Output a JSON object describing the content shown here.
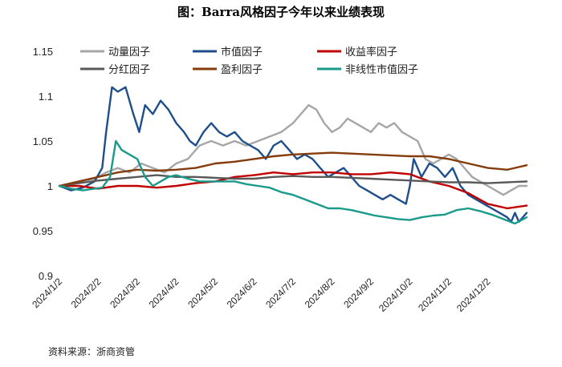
{
  "figure": {
    "title": "图：Barra风格因子今年以来业绩表现",
    "source": "资料来源：浙商资管"
  },
  "chart_data": {
    "type": "line",
    "title": "图：Barra风格因子今年以来业绩表现",
    "xlabel": "",
    "ylabel": "",
    "ylim": [
      0.9,
      1.15
    ],
    "yticks": [
      0.9,
      0.95,
      1.0,
      1.05,
      1.1,
      1.15
    ],
    "ytick_labels": [
      "0.9",
      "0.95",
      "1",
      "1.05",
      "1.1",
      "1.15"
    ],
    "xrange": [
      0,
      12
    ],
    "xticks": [
      0,
      1,
      2,
      3,
      4,
      5,
      6,
      7,
      8,
      9,
      10,
      11
    ],
    "xtick_labels": [
      "2024/1/2",
      "2024/2/2",
      "2024/3/2",
      "2024/4/2",
      "2024/5/2",
      "2024/6/2",
      "2024/7/2",
      "2024/8/2",
      "2024/9/2",
      "2024/10/2",
      "2024/11/2",
      "2024/12/2"
    ],
    "legend_position": "top",
    "grid": false,
    "series": [
      {
        "name": "动量因子",
        "color": "#a6a6a6",
        "x": [
          0,
          0.3,
          0.6,
          0.9,
          1.2,
          1.5,
          1.8,
          2.1,
          2.4,
          2.7,
          3.0,
          3.3,
          3.6,
          3.9,
          4.2,
          4.5,
          4.8,
          5.1,
          5.4,
          5.7,
          6.0,
          6.2,
          6.4,
          6.6,
          6.8,
          7.0,
          7.2,
          7.4,
          7.6,
          7.8,
          8.0,
          8.2,
          8.4,
          8.6,
          8.8,
          9.0,
          9.2,
          9.4,
          9.6,
          9.8,
          10.0,
          10.2,
          10.4,
          10.6,
          10.8,
          11.0,
          11.2,
          11.4,
          11.6,
          11.8,
          12.0
        ],
        "values": [
          1.0,
          1.003,
          1.006,
          1.008,
          1.015,
          1.02,
          1.015,
          1.025,
          1.02,
          1.015,
          1.025,
          1.03,
          1.045,
          1.05,
          1.045,
          1.05,
          1.045,
          1.05,
          1.055,
          1.06,
          1.07,
          1.08,
          1.09,
          1.085,
          1.07,
          1.06,
          1.065,
          1.075,
          1.07,
          1.065,
          1.06,
          1.07,
          1.065,
          1.07,
          1.06,
          1.055,
          1.05,
          1.03,
          1.025,
          1.03,
          1.035,
          1.03,
          1.02,
          1.01,
          1.005,
          1.0,
          0.995,
          0.99,
          0.995,
          1.0,
          1.0
        ]
      },
      {
        "name": "市值因子",
        "color": "#1f4e8c",
        "x": [
          0,
          0.3,
          0.6,
          0.9,
          1.1,
          1.2,
          1.35,
          1.5,
          1.7,
          1.9,
          2.05,
          2.2,
          2.4,
          2.6,
          2.8,
          3.0,
          3.2,
          3.35,
          3.5,
          3.7,
          3.9,
          4.1,
          4.3,
          4.5,
          4.7,
          4.9,
          5.1,
          5.3,
          5.5,
          5.7,
          5.9,
          6.1,
          6.3,
          6.5,
          6.7,
          6.9,
          7.1,
          7.3,
          7.5,
          7.7,
          7.9,
          8.1,
          8.3,
          8.5,
          8.7,
          8.9,
          9.0,
          9.1,
          9.2,
          9.3,
          9.5,
          9.7,
          9.9,
          10.1,
          10.3,
          10.5,
          10.7,
          10.9,
          11.1,
          11.3,
          11.5,
          11.6,
          11.7,
          11.8,
          12.0
        ],
        "values": [
          1.0,
          0.995,
          0.998,
          1.005,
          1.02,
          1.06,
          1.11,
          1.105,
          1.11,
          1.08,
          1.06,
          1.09,
          1.08,
          1.095,
          1.085,
          1.07,
          1.06,
          1.05,
          1.045,
          1.06,
          1.07,
          1.06,
          1.055,
          1.06,
          1.05,
          1.045,
          1.04,
          1.03,
          1.045,
          1.05,
          1.04,
          1.03,
          1.035,
          1.03,
          1.02,
          1.01,
          1.015,
          1.02,
          1.01,
          1.0,
          0.995,
          0.99,
          0.985,
          0.99,
          0.985,
          0.98,
          1.0,
          1.03,
          1.02,
          1.01,
          1.025,
          1.02,
          1.01,
          1.02,
          1.0,
          0.99,
          0.985,
          0.98,
          0.975,
          0.97,
          0.965,
          0.96,
          0.97,
          0.96,
          0.97
        ]
      },
      {
        "name": "收益率因子",
        "color": "#c00000",
        "x": [
          0,
          0.5,
          1.0,
          1.5,
          2.0,
          2.5,
          3.0,
          3.5,
          4.0,
          4.5,
          5.0,
          5.5,
          6.0,
          6.5,
          7.0,
          7.5,
          8.0,
          8.5,
          9.0,
          9.5,
          10.0,
          10.5,
          11.0,
          11.5,
          12.0
        ],
        "values": [
          1.0,
          1.0,
          0.997,
          1.0,
          1.0,
          0.998,
          1.0,
          1.003,
          1.005,
          1.01,
          1.012,
          1.015,
          1.013,
          1.015,
          1.015,
          1.013,
          1.013,
          1.015,
          1.013,
          1.005,
          1.0,
          0.992,
          0.98,
          0.975,
          0.978
        ]
      },
      {
        "name": "分红因子",
        "color": "#595959",
        "x": [
          0,
          0.5,
          1.0,
          1.5,
          2.0,
          2.5,
          3.0,
          3.5,
          4.0,
          4.5,
          5.0,
          5.5,
          6.0,
          6.5,
          7.0,
          7.5,
          8.0,
          8.5,
          9.0,
          9.5,
          10.0,
          10.5,
          11.0,
          11.5,
          12.0
        ],
        "values": [
          1.0,
          1.003,
          1.006,
          1.008,
          1.01,
          1.012,
          1.01,
          1.01,
          1.009,
          1.008,
          1.008,
          1.01,
          1.011,
          1.01,
          1.01,
          1.009,
          1.008,
          1.007,
          1.006,
          1.005,
          1.004,
          1.004,
          1.003,
          1.004,
          1.005
        ]
      },
      {
        "name": "盈利因子",
        "color": "#843c0c",
        "x": [
          0,
          0.5,
          1.0,
          1.5,
          2.0,
          2.5,
          3.0,
          3.5,
          4.0,
          4.5,
          5.0,
          5.5,
          6.0,
          6.5,
          7.0,
          7.5,
          8.0,
          8.5,
          9.0,
          9.5,
          10.0,
          10.5,
          11.0,
          11.5,
          12.0
        ],
        "values": [
          1.0,
          1.005,
          1.01,
          1.015,
          1.018,
          1.017,
          1.018,
          1.02,
          1.025,
          1.027,
          1.03,
          1.033,
          1.035,
          1.036,
          1.037,
          1.036,
          1.035,
          1.034,
          1.033,
          1.033,
          1.03,
          1.025,
          1.02,
          1.018,
          1.023
        ]
      },
      {
        "name": "非线性市值因子",
        "color": "#1a9a8a",
        "x": [
          0,
          0.3,
          0.6,
          0.9,
          1.1,
          1.3,
          1.45,
          1.6,
          1.8,
          2.0,
          2.2,
          2.4,
          2.6,
          2.8,
          3.0,
          3.3,
          3.6,
          3.9,
          4.2,
          4.5,
          4.8,
          5.1,
          5.4,
          5.7,
          6.0,
          6.3,
          6.6,
          6.9,
          7.2,
          7.5,
          7.8,
          8.1,
          8.4,
          8.7,
          9.0,
          9.3,
          9.6,
          9.9,
          10.2,
          10.5,
          10.8,
          11.1,
          11.4,
          11.7,
          12.0
        ],
        "values": [
          1.0,
          0.997,
          0.995,
          0.997,
          0.998,
          1.01,
          1.05,
          1.04,
          1.035,
          1.03,
          1.01,
          1.0,
          1.005,
          1.01,
          1.012,
          1.008,
          1.005,
          1.005,
          1.005,
          1.005,
          1.002,
          1.0,
          0.998,
          0.993,
          0.99,
          0.985,
          0.98,
          0.975,
          0.975,
          0.973,
          0.97,
          0.967,
          0.965,
          0.963,
          0.962,
          0.965,
          0.967,
          0.968,
          0.973,
          0.975,
          0.972,
          0.968,
          0.963,
          0.958,
          0.965
        ]
      }
    ]
  }
}
